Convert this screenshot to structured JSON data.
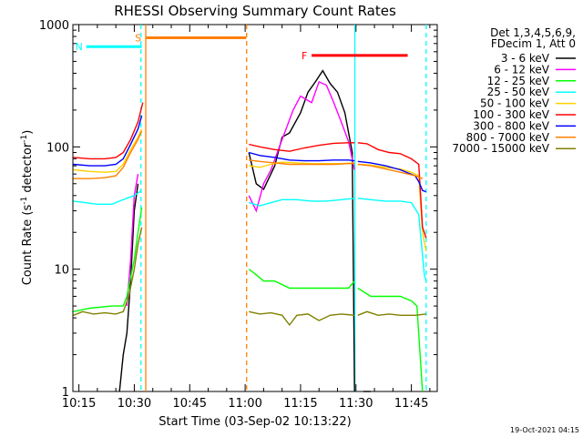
{
  "chart_data": {
    "type": "line",
    "title": "RHESSI Observing Summary Count Rates",
    "xlabel": "Start Time (03-Sep-02 10:13:22)",
    "ylabel_main": "Count Rate (s",
    "ylabel_sup": "-1",
    "ylabel_mid": " detector",
    "ylabel_sup2": "-1",
    "ylabel_end": ")",
    "yscale": "log",
    "ylim": [
      1,
      1000
    ],
    "xlim_min": [
      613.37,
      712
    ],
    "x_unit": "minutes after 00:00 UT",
    "x_ticks": [
      {
        "label": "10:15",
        "value": 615
      },
      {
        "label": "10:30",
        "value": 630
      },
      {
        "label": "10:45",
        "value": 645
      },
      {
        "label": "11:00",
        "value": 660
      },
      {
        "label": "11:15",
        "value": 675
      },
      {
        "label": "11:30",
        "value": 690
      },
      {
        "label": "11:45",
        "value": 705
      }
    ],
    "y_ticks": [
      {
        "label": "1",
        "value": 1
      },
      {
        "label": "10",
        "value": 10
      },
      {
        "label": "100",
        "value": 100
      },
      {
        "label": "1000",
        "value": 1000
      }
    ],
    "legend_header": [
      "Det 1,3,4,5,6,9,",
      "FDecim 1, Att 0"
    ],
    "legend_placement": "right",
    "footer_stamp": "19-Oct-2021 04:15",
    "flags": [
      {
        "label": "S",
        "color": "#ff8000",
        "x_start": 633,
        "x_end": 660.3,
        "level": 780
      },
      {
        "label": "N",
        "color": "#00ffff",
        "x_start": 617,
        "x_end": 632,
        "level": 660
      },
      {
        "label": "F",
        "color": "#ff0000",
        "x_start": 678,
        "x_end": 704,
        "level": 560
      }
    ],
    "markers": [
      {
        "x": 631.8,
        "color": "#00ffff",
        "style": "dashed"
      },
      {
        "x": 633.1,
        "color": "#ff8000",
        "style": "solid"
      },
      {
        "x": 660.4,
        "color": "#ff8000",
        "style": "dashed"
      },
      {
        "x": 689.7,
        "color": "#00ffff",
        "style": "solid"
      },
      {
        "x": 709,
        "color": "#00ffff",
        "style": "dashed"
      }
    ],
    "series": [
      {
        "name": "3 - 6 keV",
        "color": "#000000",
        "points": [
          [
            626,
            1
          ],
          [
            627,
            2
          ],
          [
            628,
            3
          ],
          [
            629,
            8
          ],
          [
            630,
            30
          ],
          [
            631,
            50
          ],
          [
            null,
            null
          ],
          [
            661,
            90
          ],
          [
            663,
            50
          ],
          [
            665,
            45
          ],
          [
            668,
            70
          ],
          [
            670,
            120
          ],
          [
            672,
            130
          ],
          [
            675,
            190
          ],
          [
            677,
            280
          ],
          [
            679,
            340
          ],
          [
            681,
            420
          ],
          [
            683,
            330
          ],
          [
            685,
            280
          ],
          [
            687,
            190
          ],
          [
            689,
            90
          ],
          [
            689.6,
            1
          ],
          [
            null,
            null
          ],
          [
            692,
            1
          ],
          [
            694,
            1
          ]
        ]
      },
      {
        "name": "6 - 12 keV",
        "color": "#ff00ff",
        "points": [
          [
            628,
            5
          ],
          [
            629,
            12
          ],
          [
            630,
            40
          ],
          [
            631,
            60
          ],
          [
            null,
            null
          ],
          [
            661,
            40
          ],
          [
            663,
            30
          ],
          [
            665,
            50
          ],
          [
            667,
            65
          ],
          [
            670,
            115
          ],
          [
            673,
            200
          ],
          [
            675,
            260
          ],
          [
            678,
            230
          ],
          [
            680,
            340
          ],
          [
            682,
            320
          ],
          [
            684,
            230
          ],
          [
            686,
            160
          ],
          [
            688,
            110
          ],
          [
            689.6,
            65
          ],
          [
            null,
            null
          ],
          [
            694,
            1
          ]
        ]
      },
      {
        "name": "12 - 25 keV",
        "color": "#00ff00",
        "points": [
          [
            613.5,
            4.5
          ],
          [
            618,
            4.8
          ],
          [
            624,
            5
          ],
          [
            627,
            5
          ],
          [
            628,
            6
          ],
          [
            630,
            12
          ],
          [
            631,
            20
          ],
          [
            632,
            32
          ],
          [
            null,
            null
          ],
          [
            661,
            10
          ],
          [
            663,
            9
          ],
          [
            665,
            8
          ],
          [
            668,
            8
          ],
          [
            672,
            7
          ],
          [
            676,
            7
          ],
          [
            680,
            7
          ],
          [
            684,
            7
          ],
          [
            688,
            7
          ],
          [
            689.6,
            8
          ],
          [
            null,
            null
          ],
          [
            690.5,
            7
          ],
          [
            694,
            6
          ],
          [
            698,
            6
          ],
          [
            702,
            6
          ],
          [
            705,
            5.5
          ],
          [
            706.5,
            5
          ],
          [
            708,
            1
          ]
        ]
      },
      {
        "name": "25 - 50 keV",
        "color": "#00ffff",
        "points": [
          [
            613.5,
            36
          ],
          [
            620,
            34
          ],
          [
            624,
            34
          ],
          [
            626,
            36
          ],
          [
            628,
            38
          ],
          [
            630,
            40
          ],
          [
            631,
            42
          ],
          [
            632,
            44
          ],
          [
            null,
            null
          ],
          [
            661,
            35
          ],
          [
            664,
            33
          ],
          [
            667,
            35
          ],
          [
            670,
            37
          ],
          [
            674,
            37
          ],
          [
            678,
            36
          ],
          [
            682,
            36
          ],
          [
            686,
            37
          ],
          [
            689.6,
            38
          ],
          [
            null,
            null
          ],
          [
            690.5,
            38
          ],
          [
            694,
            37
          ],
          [
            698,
            36
          ],
          [
            702,
            36
          ],
          [
            705,
            35
          ],
          [
            707,
            28
          ],
          [
            708.5,
            9
          ],
          [
            709,
            8
          ]
        ]
      },
      {
        "name": "50 - 100 keV",
        "color": "#ffd000",
        "points": [
          [
            613.5,
            65
          ],
          [
            618,
            63
          ],
          [
            622,
            62
          ],
          [
            625,
            63
          ],
          [
            627,
            72
          ],
          [
            629,
            95
          ],
          [
            631,
            120
          ],
          [
            632,
            140
          ],
          [
            null,
            null
          ],
          [
            661,
            70
          ],
          [
            664,
            68
          ],
          [
            667,
            72
          ],
          [
            670,
            75
          ],
          [
            674,
            74
          ],
          [
            678,
            73
          ],
          [
            682,
            73
          ],
          [
            686,
            73
          ],
          [
            689.6,
            74
          ],
          [
            null,
            null
          ],
          [
            690.5,
            72
          ],
          [
            694,
            71
          ],
          [
            698,
            68
          ],
          [
            702,
            66
          ],
          [
            705,
            62
          ],
          [
            707,
            58
          ],
          [
            708,
            20
          ],
          [
            709,
            14
          ]
        ]
      },
      {
        "name": "100 - 300 keV",
        "color": "#ff0000",
        "points": [
          [
            613.5,
            82
          ],
          [
            618,
            80
          ],
          [
            622,
            80
          ],
          [
            625,
            82
          ],
          [
            627,
            90
          ],
          [
            629,
            115
          ],
          [
            631,
            160
          ],
          [
            632.3,
            230
          ],
          [
            null,
            null
          ],
          [
            661,
            105
          ],
          [
            664,
            100
          ],
          [
            668,
            95
          ],
          [
            672,
            92
          ],
          [
            676,
            98
          ],
          [
            680,
            103
          ],
          [
            684,
            107
          ],
          [
            688,
            108
          ],
          [
            689.6,
            108
          ],
          [
            null,
            null
          ],
          [
            690.5,
            108
          ],
          [
            693,
            106
          ],
          [
            696,
            95
          ],
          [
            699,
            90
          ],
          [
            702,
            88
          ],
          [
            705,
            80
          ],
          [
            707,
            72
          ],
          [
            708,
            22
          ],
          [
            709,
            18
          ]
        ]
      },
      {
        "name": "300 - 800 keV",
        "color": "#0000ff",
        "points": [
          [
            613.5,
            72
          ],
          [
            618,
            70
          ],
          [
            622,
            70
          ],
          [
            625,
            72
          ],
          [
            627,
            80
          ],
          [
            629,
            105
          ],
          [
            631,
            140
          ],
          [
            632,
            180
          ],
          [
            null,
            null
          ],
          [
            661,
            90
          ],
          [
            664,
            85
          ],
          [
            668,
            82
          ],
          [
            672,
            78
          ],
          [
            676,
            77
          ],
          [
            680,
            77
          ],
          [
            684,
            78
          ],
          [
            688,
            78
          ],
          [
            689.6,
            77
          ],
          [
            null,
            null
          ],
          [
            690.5,
            76
          ],
          [
            694,
            74
          ],
          [
            698,
            70
          ],
          [
            702,
            65
          ],
          [
            706,
            58
          ],
          [
            707,
            52
          ],
          [
            708,
            44
          ],
          [
            709,
            43
          ]
        ]
      },
      {
        "name": "800 - 7000 keV",
        "color": "#ff8000",
        "points": [
          [
            613.5,
            55
          ],
          [
            618,
            55
          ],
          [
            622,
            56
          ],
          [
            625,
            58
          ],
          [
            627,
            68
          ],
          [
            629,
            90
          ],
          [
            631,
            115
          ],
          [
            632,
            135
          ],
          [
            null,
            null
          ],
          [
            661,
            78
          ],
          [
            664,
            76
          ],
          [
            668,
            74
          ],
          [
            672,
            72
          ],
          [
            676,
            72
          ],
          [
            680,
            72
          ],
          [
            684,
            72
          ],
          [
            688,
            73
          ],
          [
            689.6,
            73
          ],
          [
            null,
            null
          ],
          [
            690.5,
            72
          ],
          [
            694,
            70
          ],
          [
            698,
            66
          ],
          [
            702,
            62
          ],
          [
            706,
            58
          ],
          [
            708,
            55
          ]
        ]
      },
      {
        "name": "7000 - 15000 keV",
        "color": "#808000",
        "points": [
          [
            613.5,
            4.2
          ],
          [
            616,
            4.5
          ],
          [
            619,
            4.3
          ],
          [
            622,
            4.4
          ],
          [
            625,
            4.3
          ],
          [
            627,
            4.5
          ],
          [
            628.5,
            6
          ],
          [
            630,
            10
          ],
          [
            631,
            16
          ],
          [
            632,
            22
          ],
          [
            null,
            null
          ],
          [
            661,
            4.5
          ],
          [
            664,
            4.3
          ],
          [
            667,
            4.4
          ],
          [
            670,
            4.2
          ],
          [
            672,
            3.5
          ],
          [
            674,
            4.2
          ],
          [
            677,
            4.3
          ],
          [
            680,
            3.8
          ],
          [
            683,
            4.2
          ],
          [
            686,
            4.3
          ],
          [
            689.6,
            4.2
          ],
          [
            null,
            null
          ],
          [
            690.5,
            4.2
          ],
          [
            693,
            4.5
          ],
          [
            696,
            4.2
          ],
          [
            699,
            4.3
          ],
          [
            702,
            4.2
          ],
          [
            706,
            4.2
          ],
          [
            709,
            4.3
          ]
        ]
      }
    ]
  }
}
